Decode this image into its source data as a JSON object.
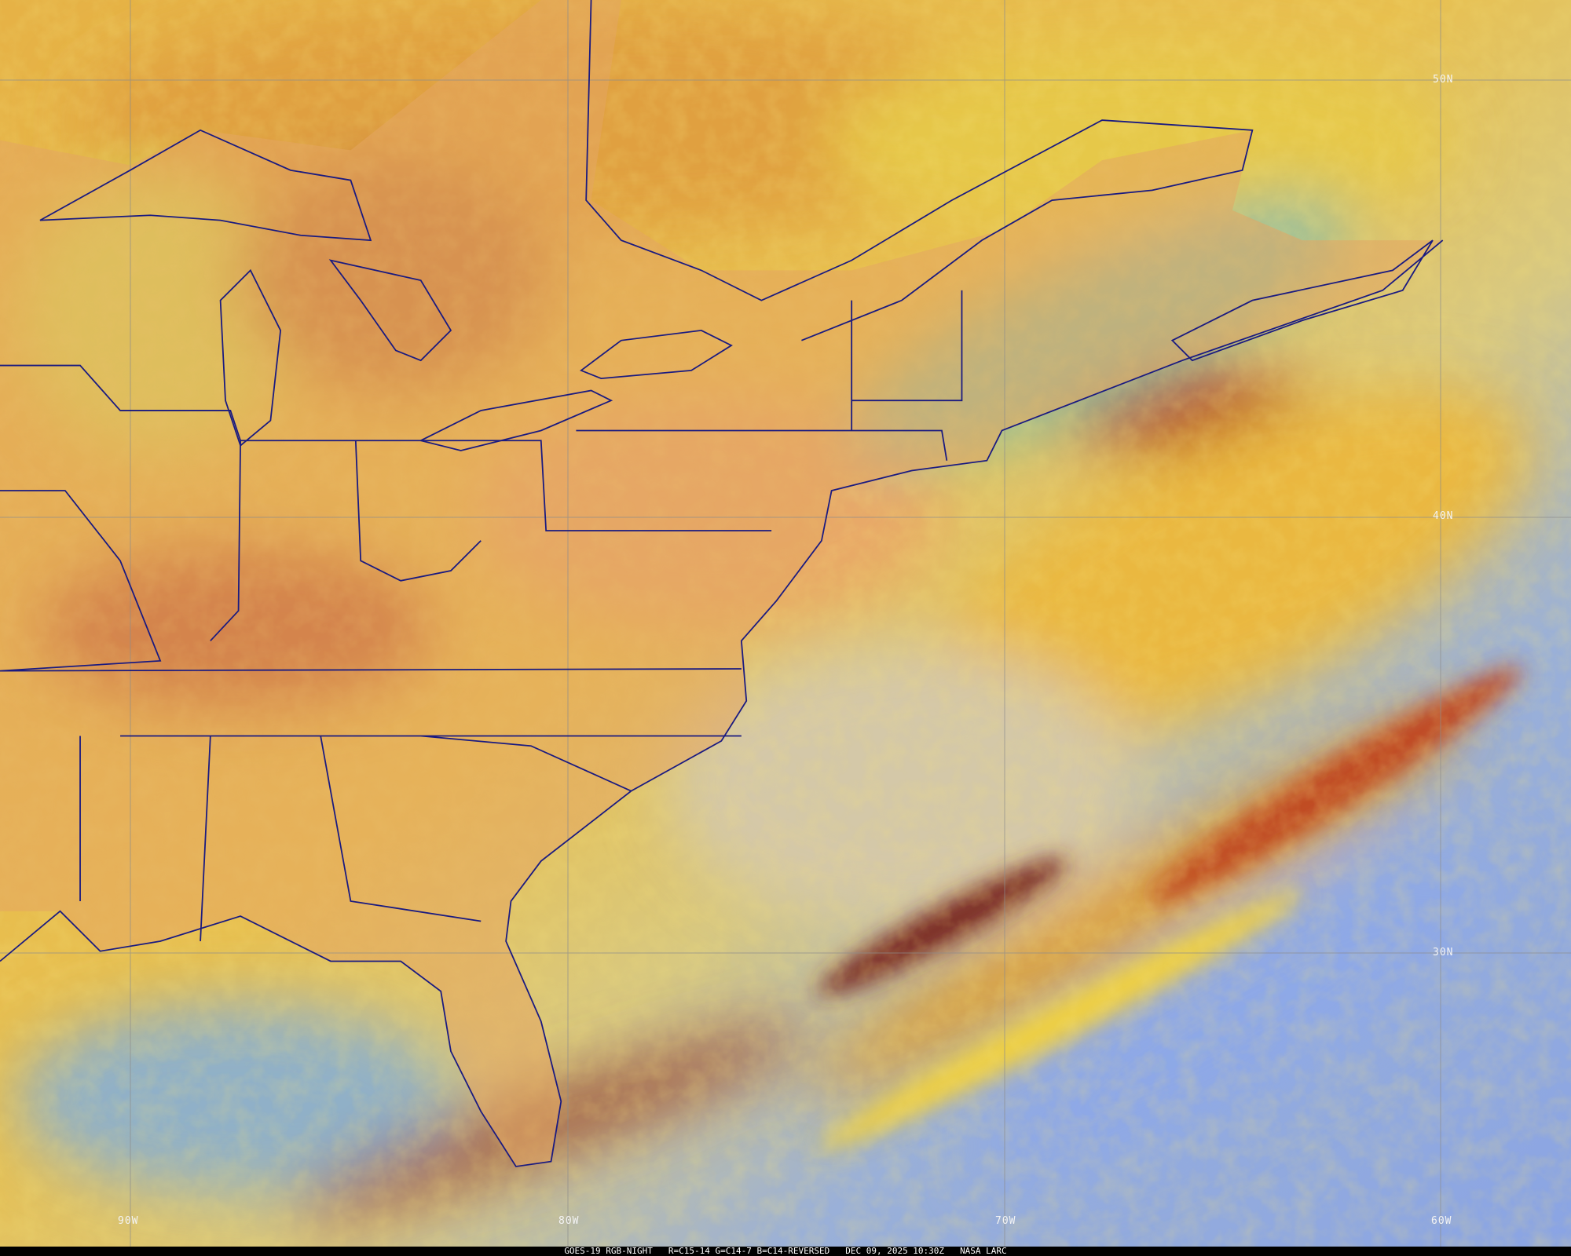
{
  "image": {
    "product": "GOES-19 RGB-NIGHT",
    "channels": "R=C15-14 G=C14-7 B=C14-REVERSED",
    "datetime": "DEC 09, 2025 10:30Z",
    "credit": "NASA LARC"
  },
  "grid": {
    "longitude_labels": [
      "90W",
      "80W",
      "70W",
      "60W"
    ],
    "latitude_labels": [
      "50N",
      "40N",
      "30N"
    ]
  },
  "colors": {
    "border_lines": "#1a1a80",
    "grid_lines": "#8c8c8c",
    "land_orange": "#e0a050",
    "land_yellow": "#d8d850",
    "clear_ocean_blue": "#8aa8e0",
    "cloud_red": "#b03020",
    "ocean_green": "#8ec090"
  }
}
